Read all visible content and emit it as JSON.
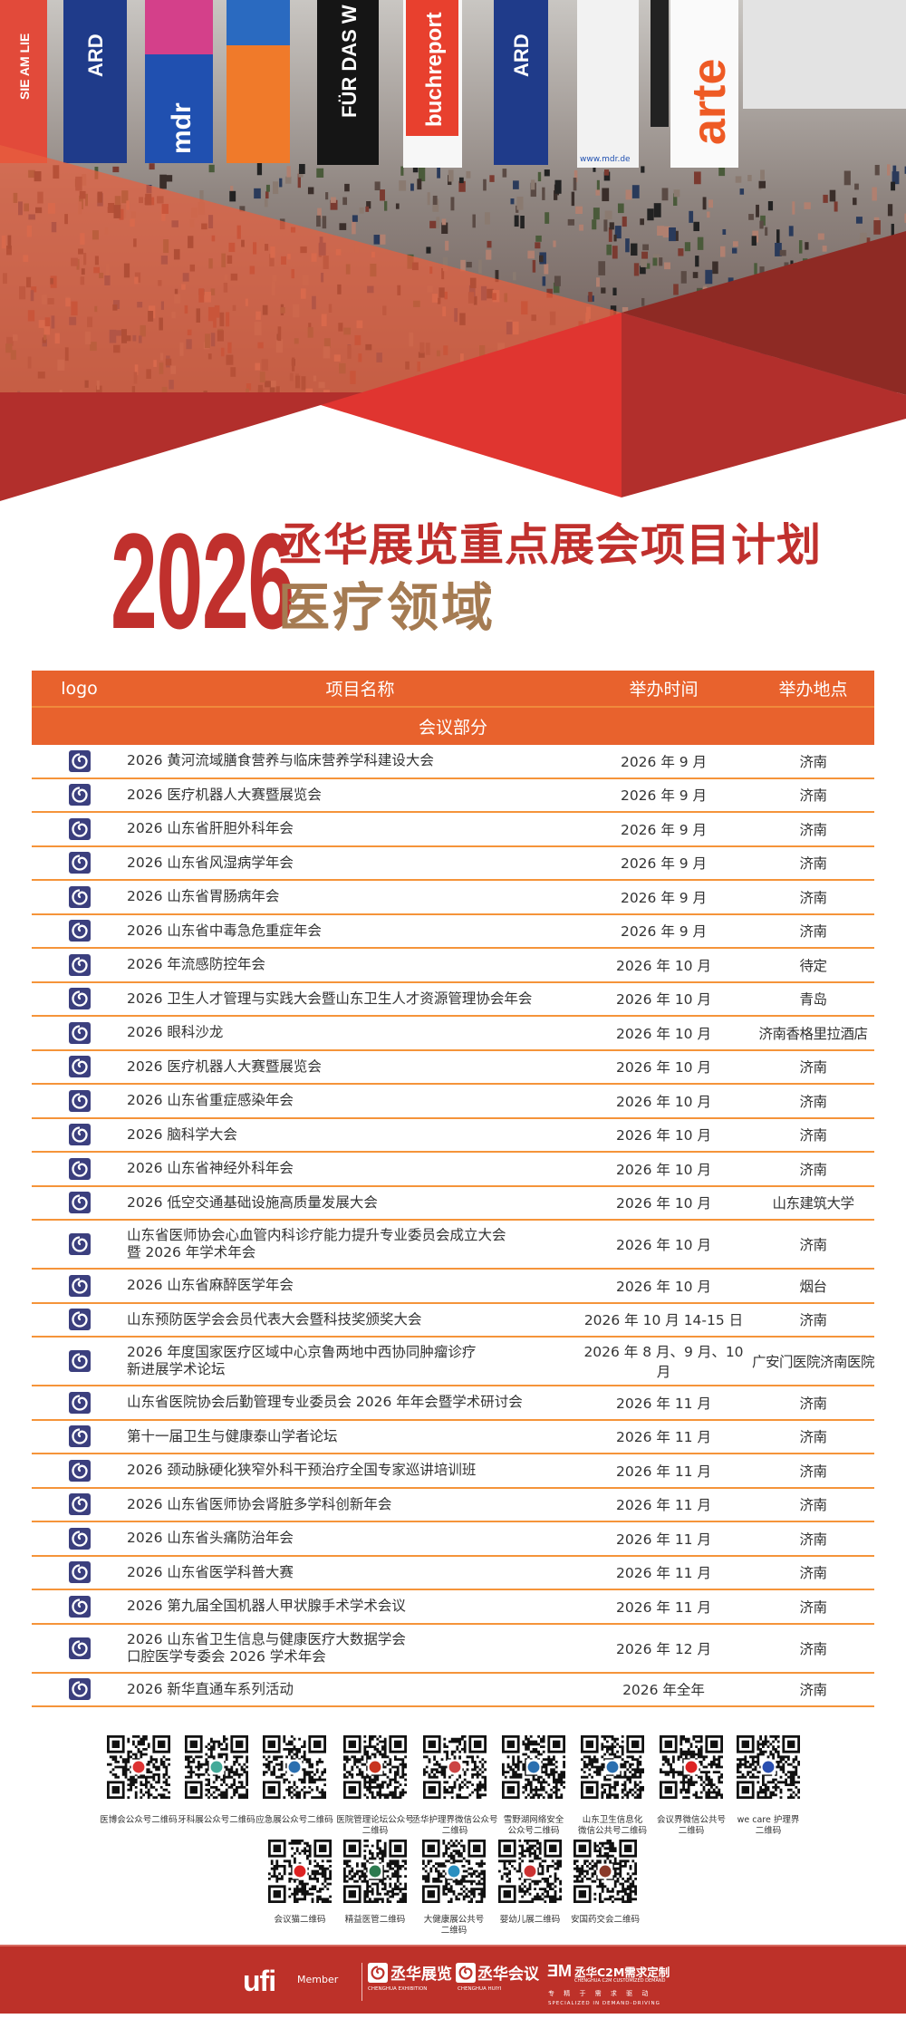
{
  "hero": {
    "banners": [
      "SIE AM LIE",
      "ARD",
      "mdr",
      "FÜR DAS W",
      "buchreport",
      "ARD",
      "arte",
      "www.mdr.de"
    ],
    "colors": {
      "red": "#e03530",
      "dark_red": "#b22f2c",
      "maroon": "#8e2a24",
      "tint": "#e8603f"
    }
  },
  "title": {
    "year": "2026",
    "main": "丞华展览重点展会项目计划",
    "sub": "医疗领域"
  },
  "table": {
    "headers": {
      "logo": "logo",
      "name": "项目名称",
      "time": "举办时间",
      "place": "举办地点"
    },
    "section": "会议部分",
    "accent": "#e8622d",
    "rows": [
      {
        "name": "2026 黄河流域膳食营养与临床营养学科建设大会",
        "time": "2026 年 9 月",
        "place": "济南"
      },
      {
        "name": "2026 医疗机器人大赛暨展览会",
        "time": "2026 年 9 月",
        "place": "济南"
      },
      {
        "name": "2026 山东省肝胆外科年会",
        "time": "2026 年 9 月",
        "place": "济南"
      },
      {
        "name": "2026 山东省风湿病学年会",
        "time": "2026 年 9 月",
        "place": "济南"
      },
      {
        "name": "2026 山东省胃肠病年会",
        "time": "2026 年 9 月",
        "place": "济南"
      },
      {
        "name": "2026 山东省中毒急危重症年会",
        "time": "2026 年 9 月",
        "place": "济南"
      },
      {
        "name": "2026 年流感防控年会",
        "time": "2026 年 10 月",
        "place": "待定"
      },
      {
        "name": "2026 卫生人才管理与实践大会暨山东卫生人才资源管理协会年会",
        "time": "2026 年 10 月",
        "place": "青岛"
      },
      {
        "name": "2026 眼科沙龙",
        "time": "2026 年 10 月",
        "place": "济南香格里拉酒店"
      },
      {
        "name": "2026 医疗机器人大赛暨展览会",
        "time": "2026 年 10 月",
        "place": "济南"
      },
      {
        "name": "2026 山东省重症感染年会",
        "time": "2026 年 10 月",
        "place": "济南"
      },
      {
        "name": "2026 脑科学大会",
        "time": "2026 年 10 月",
        "place": "济南"
      },
      {
        "name": "2026 山东省神经外科年会",
        "time": "2026 年 10 月",
        "place": "济南"
      },
      {
        "name": "2026 低空交通基础设施高质量发展大会",
        "time": "2026 年 10 月",
        "place": "山东建筑大学"
      },
      {
        "name": "山东省医师协会心血管内科诊疗能力提升专业委员会成立大会\n暨 2026 年学术年会",
        "time": "2026 年 10 月",
        "place": "济南"
      },
      {
        "name": "2026 山东省麻醉医学年会",
        "time": "2026 年 10 月",
        "place": "烟台"
      },
      {
        "name": "山东预防医学会会员代表大会暨科技奖颁奖大会",
        "time": "2026 年 10 月 14-15 日",
        "place": "济南"
      },
      {
        "name": "2026 年度国家医疗区域中心京鲁两地中西协同肿瘤诊疗\n新进展学术论坛",
        "time": "2026 年 8 月、9 月、10 月",
        "place": "广安门医院济南医院"
      },
      {
        "name": "山东省医院协会后勤管理专业委员会 2026 年年会暨学术研讨会",
        "time": "2026 年 11 月",
        "place": "济南"
      },
      {
        "name": "第十一届卫生与健康泰山学者论坛",
        "time": "2026 年 11 月",
        "place": "济南"
      },
      {
        "name": "2026 颈动脉硬化狭窄外科干预治疗全国专家巡讲培训班",
        "time": "2026 年 11 月",
        "place": "济南"
      },
      {
        "name": "2026 山东省医师协会肾脏多学科创新年会",
        "time": "2026 年 11 月",
        "place": "济南"
      },
      {
        "name": "2026 山东省头痛防治年会",
        "time": "2026 年 11 月",
        "place": "济南"
      },
      {
        "name": "2026 山东省医学科普大赛",
        "time": "2026 年 11 月",
        "place": "济南"
      },
      {
        "name": "2026 第九届全国机器人甲状腺手术学术会议",
        "time": "2026 年 11 月",
        "place": "济南"
      },
      {
        "name": "2026 山东省卫生信息与健康医疗大数据学会\n口腔医学专委会 2026 学术年会",
        "time": "2026 年 12 月",
        "place": "济南"
      },
      {
        "name": "2026 新华直通车系列活动",
        "time": "2026 年全年",
        "place": "济南"
      }
    ]
  },
  "qr_codes": [
    {
      "label": "医博会公众号二维码",
      "logo_color": "#d33"
    },
    {
      "label": "牙科展公众号二维码",
      "logo_color": "#4a9"
    },
    {
      "label": "应急展公众号二维码",
      "logo_color": "#2a6fb0"
    },
    {
      "label": "医院管理论坛公众号\n二维码",
      "logo_color": "#c8341f"
    },
    {
      "label": "丞华护理界微信公众号\n二维码",
      "logo_color": "#c44"
    },
    {
      "label": "雪野湖网络安全\n公众号二维码",
      "logo_color": "#2a6fb0"
    },
    {
      "label": "山东卫生信息化\n微信公共号二维码",
      "logo_color": "#2a6fb0"
    },
    {
      "label": "会议界微信公共号\n二维码",
      "logo_color": "#d22"
    },
    {
      "label": "we care 护理界\n二维码",
      "logo_color": "#2a4fb0"
    },
    {
      "label": "会议猫二维码",
      "logo_color": "#d22"
    },
    {
      "label": "精益医管二维码",
      "logo_color": "#2d7a4f"
    },
    {
      "label": "大健康展公共号\n二维码",
      "logo_color": "#2a8fc0"
    },
    {
      "label": "婴幼儿展二维码",
      "logo_color": "#c33"
    },
    {
      "label": "安国药交会二维码",
      "logo_color": "#8a3a2a"
    }
  ],
  "footer": {
    "bg": "#bd3129",
    "ufi": "ufi",
    "member": "Member",
    "brand1": "丞华展览",
    "brand1_en": "CHENGHUA EXHIBITION",
    "brand2": "丞华会议",
    "brand2_en": "CHENGHUA HUIYI",
    "brand3": "丞华C2M需求定制",
    "brand3_en": "CHENGHUA C2M CUSTOMIZED DEMAND",
    "brand3_slogan": "专 精 于 需 求 驱 动",
    "brand3_slogan_en": "SPECIALIZED IN DEMAND-DRIVING"
  }
}
